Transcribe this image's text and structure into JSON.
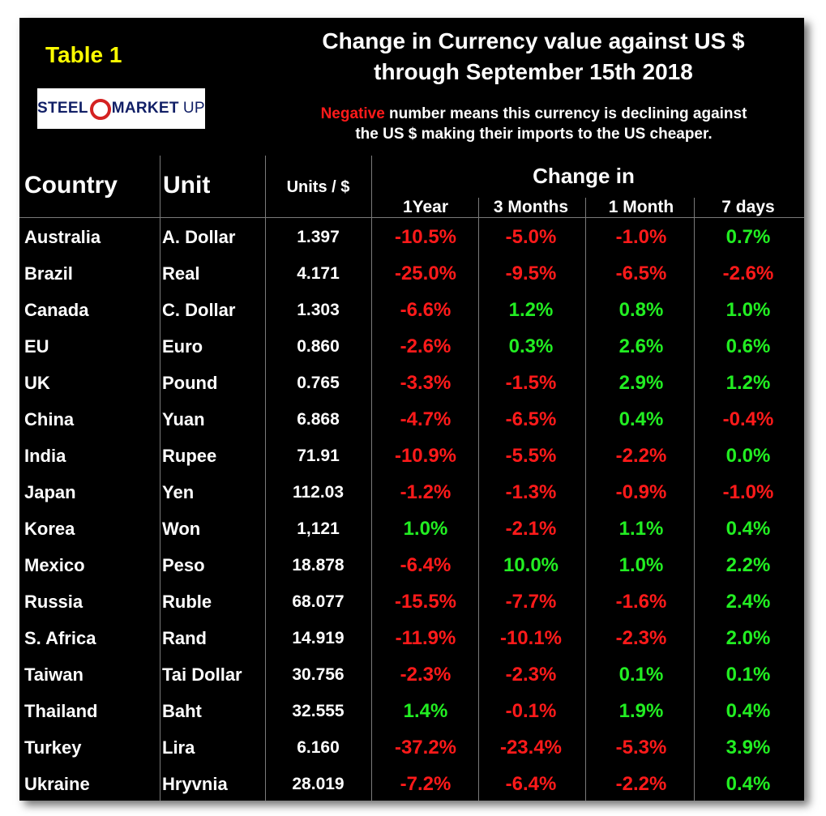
{
  "table_label": "Table 1",
  "logo": {
    "steel": "STEEL",
    "market": "MARKET",
    "update": "UPDATE"
  },
  "title_line1": "Change in Currency value against US $",
  "title_line2": "through September 15th 2018",
  "note": {
    "negative_word": "Negative",
    "rest_line1": " number means this currency is declining against",
    "line2": "the US $ making their imports to the US cheaper."
  },
  "headers": {
    "country": "Country",
    "unit": "Unit",
    "units_per_dollar": "Units / $",
    "change_in": "Change in",
    "periods": [
      "1Year",
      "3 Months",
      "1 Month",
      "7 days"
    ]
  },
  "colors": {
    "negative": "#ff1a1a",
    "positive": "#22ee22",
    "label": "#ffff00"
  },
  "rows": [
    {
      "country": "Australia",
      "unit": "A. Dollar",
      "rate": "1.397",
      "y1": "-10.5%",
      "m3": "-5.0%",
      "m1": "-1.0%",
      "d7": "0.7%"
    },
    {
      "country": "Brazil",
      "unit": "Real",
      "rate": "4.171",
      "y1": "-25.0%",
      "m3": "-9.5%",
      "m1": "-6.5%",
      "d7": "-2.6%"
    },
    {
      "country": "Canada",
      "unit": "C. Dollar",
      "rate": "1.303",
      "y1": "-6.6%",
      "m3": "1.2%",
      "m1": "0.8%",
      "d7": "1.0%"
    },
    {
      "country": "EU",
      "unit": "Euro",
      "rate": "0.860",
      "y1": "-2.6%",
      "m3": "0.3%",
      "m1": "2.6%",
      "d7": "0.6%"
    },
    {
      "country": "UK",
      "unit": "Pound",
      "rate": "0.765",
      "y1": "-3.3%",
      "m3": "-1.5%",
      "m1": "2.9%",
      "d7": "1.2%"
    },
    {
      "country": "China",
      "unit": "Yuan",
      "rate": "6.868",
      "y1": "-4.7%",
      "m3": "-6.5%",
      "m1": "0.4%",
      "d7": "-0.4%"
    },
    {
      "country": "India",
      "unit": "Rupee",
      "rate": "71.91",
      "y1": "-10.9%",
      "m3": "-5.5%",
      "m1": "-2.2%",
      "d7": "0.0%"
    },
    {
      "country": "Japan",
      "unit": "Yen",
      "rate": "112.03",
      "y1": "-1.2%",
      "m3": "-1.3%",
      "m1": "-0.9%",
      "d7": "-1.0%"
    },
    {
      "country": "Korea",
      "unit": "Won",
      "rate": "1,121",
      "y1": "1.0%",
      "m3": "-2.1%",
      "m1": "1.1%",
      "d7": "0.4%"
    },
    {
      "country": "Mexico",
      "unit": "Peso",
      "rate": "18.878",
      "y1": "-6.4%",
      "m3": "10.0%",
      "m1": "1.0%",
      "d7": "2.2%"
    },
    {
      "country": "Russia",
      "unit": "Ruble",
      "rate": "68.077",
      "y1": "-15.5%",
      "m3": "-7.7%",
      "m1": "-1.6%",
      "d7": "2.4%"
    },
    {
      "country": "S. Africa",
      "unit": "Rand",
      "rate": "14.919",
      "y1": "-11.9%",
      "m3": "-10.1%",
      "m1": "-2.3%",
      "d7": "2.0%"
    },
    {
      "country": "Taiwan",
      "unit": "Tai Dollar",
      "rate": "30.756",
      "y1": "-2.3%",
      "m3": "-2.3%",
      "m1": "0.1%",
      "d7": "0.1%"
    },
    {
      "country": "Thailand",
      "unit": "Baht",
      "rate": "32.555",
      "y1": "1.4%",
      "m3": "-0.1%",
      "m1": "1.9%",
      "d7": "0.4%"
    },
    {
      "country": "Turkey",
      "unit": "Lira",
      "rate": "6.160",
      "y1": "-37.2%",
      "m3": "-23.4%",
      "m1": "-5.3%",
      "d7": "3.9%"
    },
    {
      "country": "Ukraine",
      "unit": "Hryvnia",
      "rate": "28.019",
      "y1": "-7.2%",
      "m3": "-6.4%",
      "m1": "-2.2%",
      "d7": "0.4%"
    }
  ]
}
